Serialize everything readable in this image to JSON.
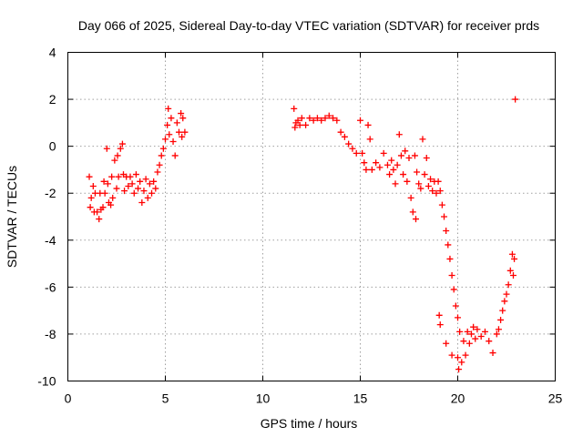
{
  "chart_data": {
    "type": "scatter",
    "title": "Day 066 of 2025, Sidereal Day-to-day VTEC variation (SDTVAR) for receiver prds",
    "xlabel": "GPS time / hours",
    "ylabel": "SDTVAR / TECUs",
    "xlim": [
      0,
      25
    ],
    "ylim": [
      -10,
      4
    ],
    "xticks": [
      0,
      5,
      10,
      15,
      20,
      25
    ],
    "yticks": [
      -10,
      -8,
      -6,
      -4,
      -2,
      0,
      2,
      4
    ],
    "grid": true,
    "marker": "plus",
    "colors": {
      "points": "#ff0000",
      "grid": "#a0a0a0",
      "axes": "#000000"
    },
    "series": [
      {
        "name": "prds",
        "points": [
          [
            1.1,
            -1.3
          ],
          [
            1.15,
            -2.6
          ],
          [
            1.2,
            -2.2
          ],
          [
            1.3,
            -1.7
          ],
          [
            1.35,
            -2.8
          ],
          [
            1.4,
            -2.0
          ],
          [
            1.5,
            -2.8
          ],
          [
            1.6,
            -3.1
          ],
          [
            1.65,
            -2.0
          ],
          [
            1.7,
            -2.7
          ],
          [
            1.8,
            -2.6
          ],
          [
            1.85,
            -1.5
          ],
          [
            1.9,
            -2.0
          ],
          [
            2.0,
            -0.1
          ],
          [
            2.05,
            -1.6
          ],
          [
            2.1,
            -2.4
          ],
          [
            2.2,
            -2.5
          ],
          [
            2.25,
            -1.3
          ],
          [
            2.3,
            -2.2
          ],
          [
            2.4,
            -0.6
          ],
          [
            2.5,
            -1.8
          ],
          [
            2.55,
            -0.4
          ],
          [
            2.6,
            -1.3
          ],
          [
            2.7,
            -0.1
          ],
          [
            2.8,
            0.1
          ],
          [
            2.85,
            -1.2
          ],
          [
            2.9,
            -1.9
          ],
          [
            3.0,
            -1.3
          ],
          [
            3.1,
            -1.7
          ],
          [
            3.2,
            -1.3
          ],
          [
            3.3,
            -1.6
          ],
          [
            3.4,
            -2.0
          ],
          [
            3.5,
            -1.2
          ],
          [
            3.6,
            -1.8
          ],
          [
            3.7,
            -1.5
          ],
          [
            3.8,
            -2.4
          ],
          [
            3.9,
            -1.9
          ],
          [
            4.0,
            -1.4
          ],
          [
            4.1,
            -2.2
          ],
          [
            4.2,
            -1.6
          ],
          [
            4.3,
            -2.0
          ],
          [
            4.4,
            -1.5
          ],
          [
            4.5,
            -1.8
          ],
          [
            4.6,
            -1.1
          ],
          [
            4.7,
            -0.8
          ],
          [
            4.8,
            -0.4
          ],
          [
            4.9,
            -0.1
          ],
          [
            5.0,
            0.3
          ],
          [
            5.1,
            0.9
          ],
          [
            5.15,
            1.6
          ],
          [
            5.2,
            0.5
          ],
          [
            5.3,
            1.2
          ],
          [
            5.4,
            0.2
          ],
          [
            5.5,
            -0.4
          ],
          [
            5.6,
            1.0
          ],
          [
            5.7,
            0.6
          ],
          [
            5.8,
            1.4
          ],
          [
            5.85,
            0.4
          ],
          [
            5.9,
            1.2
          ],
          [
            6.0,
            0.6
          ],
          [
            11.6,
            1.6
          ],
          [
            11.65,
            0.8
          ],
          [
            11.7,
            1.0
          ],
          [
            11.8,
            1.1
          ],
          [
            11.9,
            0.9
          ],
          [
            12.0,
            1.2
          ],
          [
            12.2,
            0.9
          ],
          [
            12.4,
            1.2
          ],
          [
            12.6,
            1.1
          ],
          [
            12.8,
            1.2
          ],
          [
            13.0,
            1.1
          ],
          [
            13.2,
            1.2
          ],
          [
            13.4,
            1.3
          ],
          [
            13.6,
            1.2
          ],
          [
            13.8,
            1.1
          ],
          [
            14.0,
            0.6
          ],
          [
            14.2,
            0.4
          ],
          [
            14.4,
            0.1
          ],
          [
            14.6,
            -0.1
          ],
          [
            14.8,
            -0.3
          ],
          [
            15.0,
            1.1
          ],
          [
            15.1,
            -0.3
          ],
          [
            15.2,
            -0.7
          ],
          [
            15.3,
            -1.0
          ],
          [
            15.4,
            0.9
          ],
          [
            15.5,
            0.3
          ],
          [
            15.6,
            -1.0
          ],
          [
            15.8,
            -0.7
          ],
          [
            16.0,
            -0.9
          ],
          [
            16.2,
            -0.3
          ],
          [
            16.4,
            -0.8
          ],
          [
            16.5,
            -1.2
          ],
          [
            16.6,
            -0.6
          ],
          [
            16.7,
            -1.0
          ],
          [
            16.8,
            -1.6
          ],
          [
            16.9,
            -0.8
          ],
          [
            17.0,
            0.5
          ],
          [
            17.1,
            -0.4
          ],
          [
            17.2,
            -1.2
          ],
          [
            17.3,
            -0.2
          ],
          [
            17.4,
            -1.5
          ],
          [
            17.5,
            -0.5
          ],
          [
            17.6,
            -2.2
          ],
          [
            17.7,
            -2.8
          ],
          [
            17.8,
            -0.4
          ],
          [
            17.85,
            -3.1
          ],
          [
            17.9,
            -1.1
          ],
          [
            18.0,
            -1.6
          ],
          [
            18.1,
            -1.8
          ],
          [
            18.2,
            0.3
          ],
          [
            18.3,
            -1.2
          ],
          [
            18.4,
            -0.5
          ],
          [
            18.5,
            -1.7
          ],
          [
            18.6,
            -1.4
          ],
          [
            18.7,
            -1.9
          ],
          [
            18.8,
            -1.5
          ],
          [
            18.9,
            -2.0
          ],
          [
            19.0,
            -1.5
          ],
          [
            19.05,
            -7.2
          ],
          [
            19.1,
            -1.9
          ],
          [
            19.2,
            -2.5
          ],
          [
            19.3,
            -3.0
          ],
          [
            19.4,
            -3.6
          ],
          [
            19.5,
            -4.2
          ],
          [
            19.6,
            -4.8
          ],
          [
            19.7,
            -5.5
          ],
          [
            19.8,
            -6.1
          ],
          [
            19.9,
            -6.8
          ],
          [
            20.0,
            -7.3
          ],
          [
            20.05,
            -9.5
          ],
          [
            20.1,
            -7.9
          ],
          [
            20.2,
            -9.2
          ],
          [
            20.3,
            -8.3
          ],
          [
            20.4,
            -8.9
          ],
          [
            20.5,
            -7.9
          ],
          [
            20.6,
            -8.4
          ],
          [
            20.7,
            -8.0
          ],
          [
            20.8,
            -7.7
          ],
          [
            20.9,
            -8.2
          ],
          [
            21.0,
            -7.8
          ],
          [
            21.2,
            -8.1
          ],
          [
            21.4,
            -7.9
          ],
          [
            21.6,
            -8.3
          ],
          [
            21.8,
            -8.8
          ],
          [
            22.0,
            -8.0
          ],
          [
            22.1,
            -7.8
          ],
          [
            22.2,
            -7.4
          ],
          [
            22.3,
            -7.0
          ],
          [
            22.4,
            -6.6
          ],
          [
            22.5,
            -6.3
          ],
          [
            22.6,
            -5.9
          ],
          [
            22.7,
            -5.3
          ],
          [
            22.8,
            -4.6
          ],
          [
            22.85,
            -5.5
          ],
          [
            22.9,
            -4.8
          ],
          [
            22.95,
            2.0
          ],
          [
            19.1,
            -7.6
          ],
          [
            19.4,
            -8.4
          ],
          [
            19.7,
            -8.9
          ],
          [
            20.0,
            -9.0
          ]
        ]
      }
    ]
  }
}
